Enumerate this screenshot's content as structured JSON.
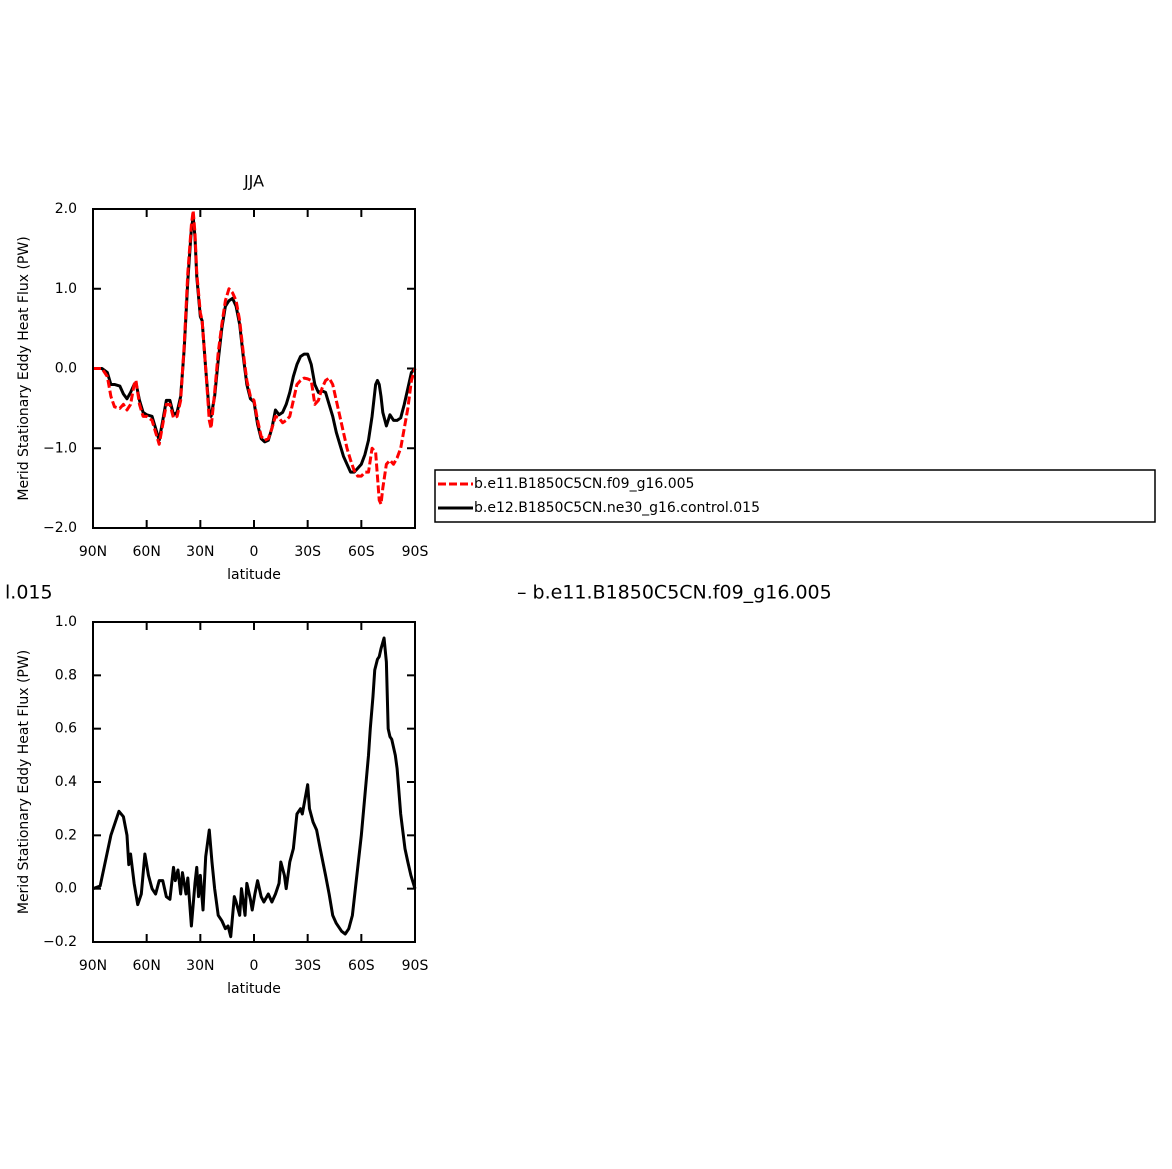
{
  "chart_data": [
    {
      "type": "line",
      "title": "JJA",
      "ylabel": "Merid Stationary Eddy Heat Flux (PW)",
      "xlabel": "latitude",
      "xlim": [
        90,
        -90
      ],
      "xticks": [
        {
          "value": 90,
          "label": "90N"
        },
        {
          "value": 60,
          "label": "60N"
        },
        {
          "value": 30,
          "label": "30N"
        },
        0,
        {
          "value": -30,
          "label": "30S"
        },
        {
          "value": -60,
          "label": "60S"
        },
        {
          "value": -90,
          "label": "90S"
        }
      ],
      "ylim": [
        -2,
        2
      ],
      "yticks": [
        {
          "value": -2,
          "label": "−2.0"
        },
        {
          "value": -1,
          "label": "−1.0"
        },
        {
          "value": 0,
          "label": "0.0"
        },
        {
          "value": 1,
          "label": "1.0"
        },
        {
          "value": 2,
          "label": "2.0"
        }
      ],
      "legend": "right",
      "x": [
        90,
        85,
        82,
        80,
        78,
        75,
        73,
        71,
        69,
        67,
        66,
        64,
        62,
        60,
        57,
        55,
        53,
        51,
        49,
        47,
        45,
        43,
        41,
        39,
        37,
        35,
        34,
        33,
        32,
        30,
        29,
        27,
        25,
        24,
        22,
        20,
        18,
        16,
        14,
        12,
        10,
        8,
        6,
        4,
        2,
        0,
        -2,
        -4,
        -6,
        -8,
        -10,
        -12,
        -14,
        -16,
        -18,
        -20,
        -22,
        -24,
        -26,
        -28,
        -30,
        -32,
        -34,
        -36,
        -38,
        -40,
        -42,
        -44,
        -46,
        -48,
        -50,
        -52,
        -54,
        -56,
        -58,
        -60,
        -62,
        -64,
        -66,
        -68,
        -69,
        -70,
        -71,
        -72,
        -74,
        -76,
        -78,
        -80,
        -82,
        -84,
        -86,
        -88,
        -90
      ],
      "series": [
        {
          "name": "b.e11.B1850C5CN.f09_g16.005",
          "color": "#ff0000",
          "linestyle": "dashed",
          "values": [
            0,
            0,
            -0.1,
            -0.35,
            -0.48,
            -0.5,
            -0.45,
            -0.52,
            -0.45,
            -0.2,
            -0.15,
            -0.45,
            -0.6,
            -0.6,
            -0.65,
            -0.8,
            -0.95,
            -0.7,
            -0.45,
            -0.45,
            -0.62,
            -0.6,
            -0.4,
            0.3,
            1.2,
            1.8,
            1.98,
            1.7,
            1.2,
            0.7,
            0.6,
            0,
            -0.65,
            -0.75,
            -0.3,
            0.2,
            0.55,
            0.85,
            1.0,
            0.95,
            0.85,
            0.6,
            0.2,
            -0.15,
            -0.35,
            -0.4,
            -0.65,
            -0.85,
            -0.9,
            -0.88,
            -0.75,
            -0.6,
            -0.62,
            -0.68,
            -0.65,
            -0.6,
            -0.4,
            -0.2,
            -0.15,
            -0.12,
            -0.13,
            -0.15,
            -0.45,
            -0.4,
            -0.25,
            -0.15,
            -0.12,
            -0.2,
            -0.4,
            -0.6,
            -0.8,
            -1.0,
            -1.15,
            -1.28,
            -1.35,
            -1.35,
            -1.3,
            -1.3,
            -1.0,
            -1.05,
            -1.35,
            -1.65,
            -1.7,
            -1.5,
            -1.2,
            -1.15,
            -1.2,
            -1.12,
            -1.0,
            -0.75,
            -0.5,
            -0.15,
            0
          ]
        },
        {
          "name": "b.e12.B1850C5CN.ne30_g16.control.015",
          "color": "#000000",
          "linestyle": "solid",
          "values": [
            0,
            0,
            -0.05,
            -0.2,
            -0.2,
            -0.22,
            -0.32,
            -0.38,
            -0.3,
            -0.2,
            -0.18,
            -0.4,
            -0.55,
            -0.58,
            -0.6,
            -0.75,
            -0.9,
            -0.65,
            -0.4,
            -0.4,
            -0.58,
            -0.55,
            -0.35,
            0.25,
            1.1,
            1.75,
            1.9,
            1.65,
            1.15,
            0.65,
            0.6,
            0,
            -0.55,
            -0.6,
            -0.35,
            0.1,
            0.5,
            0.78,
            0.85,
            0.88,
            0.78,
            0.55,
            0.15,
            -0.2,
            -0.38,
            -0.42,
            -0.7,
            -0.88,
            -0.92,
            -0.9,
            -0.75,
            -0.52,
            -0.58,
            -0.55,
            -0.45,
            -0.3,
            -0.1,
            0.05,
            0.15,
            0.18,
            0.18,
            0.05,
            -0.2,
            -0.3,
            -0.28,
            -0.3,
            -0.45,
            -0.6,
            -0.8,
            -0.95,
            -1.1,
            -1.2,
            -1.3,
            -1.3,
            -1.25,
            -1.2,
            -1.08,
            -0.9,
            -0.6,
            -0.2,
            -0.15,
            -0.2,
            -0.35,
            -0.55,
            -0.72,
            -0.58,
            -0.65,
            -0.65,
            -0.62,
            -0.45,
            -0.25,
            -0.05,
            0
          ]
        }
      ]
    },
    {
      "type": "line",
      "ylabel": "Merid Stationary Eddy Heat Flux (PW)",
      "xlabel": "latitude",
      "annotations": [
        "l.015",
        "– b.e11.B1850C5CN.f09_g16.005"
      ],
      "xlim": [
        90,
        -90
      ],
      "xticks": [
        {
          "value": 90,
          "label": "90N"
        },
        {
          "value": 60,
          "label": "60N"
        },
        {
          "value": 30,
          "label": "30N"
        },
        0,
        {
          "value": -30,
          "label": "30S"
        },
        {
          "value": -60,
          "label": "60S"
        },
        {
          "value": -90,
          "label": "90S"
        }
      ],
      "ylim": [
        -0.2,
        1
      ],
      "yticks": [
        {
          "value": -0.2,
          "label": "−0.2"
        },
        {
          "value": 0,
          "label": "0.0"
        },
        0.2,
        0.4,
        0.6,
        0.8,
        {
          "value": 1,
          "label": "1.0"
        }
      ],
      "x": [
        90,
        86,
        80,
        75.5,
        73,
        71,
        70,
        69,
        67,
        65,
        63,
        61,
        59,
        57,
        55,
        53,
        51,
        49,
        47,
        45,
        44,
        42.5,
        41,
        40,
        38,
        37,
        36,
        35,
        33,
        32,
        31,
        30,
        28.5,
        27,
        25,
        23.5,
        22,
        20,
        18,
        16,
        14.5,
        13,
        11,
        10,
        8,
        7,
        6,
        5,
        4,
        2,
        1,
        -0.5,
        -2,
        -4,
        -5.5,
        -8,
        -10,
        -12,
        -14,
        -15,
        -17,
        -18,
        -20,
        -22,
        -24,
        -26,
        -27,
        -30,
        -31,
        -33,
        -35,
        -37,
        -40,
        -42,
        -44,
        -46,
        -49,
        -51,
        -53,
        -55,
        -57.5,
        -60,
        -62,
        -64,
        -65,
        -66.5,
        -67.5,
        -69,
        -70,
        -71,
        -72.7,
        -74,
        -75,
        -76,
        -77,
        -79,
        -80,
        -82,
        -84.4,
        -86,
        -87.7,
        -90
      ],
      "series": [
        {
          "color": "#000000",
          "linestyle": "solid",
          "values": [
            0,
            0.01,
            0.2,
            0.29,
            0.27,
            0.2,
            0.09,
            0.13,
            0.02,
            -0.06,
            -0.02,
            0.13,
            0.05,
            0,
            -0.02,
            0.03,
            0.03,
            -0.03,
            -0.04,
            0.08,
            0.03,
            0.07,
            -0.02,
            0.06,
            -0.02,
            0.04,
            -0.05,
            -0.14,
            0.02,
            0.08,
            -0.03,
            0.05,
            -0.08,
            0.12,
            0.22,
            0.1,
            0,
            -0.1,
            -0.12,
            -0.15,
            -0.14,
            -0.18,
            -0.03,
            -0.05,
            -0.1,
            0,
            -0.05,
            -0.1,
            0.02,
            -0.04,
            -0.08,
            -0.02,
            0.03,
            -0.03,
            -0.05,
            -0.02,
            -0.05,
            -0.02,
            0.02,
            0.1,
            0.05,
            0,
            0.1,
            0.15,
            0.28,
            0.3,
            0.28,
            0.39,
            0.3,
            0.25,
            0.22,
            0.15,
            0.05,
            -0.02,
            -0.1,
            -0.13,
            -0.16,
            -0.17,
            -0.15,
            -0.1,
            0.05,
            0.2,
            0.35,
            0.5,
            0.6,
            0.72,
            0.82,
            0.86,
            0.87,
            0.9,
            0.94,
            0.85,
            0.6,
            0.57,
            0.56,
            0.5,
            0.45,
            0.28,
            0.15,
            0.1,
            0.05,
            0
          ]
        }
      ]
    }
  ]
}
